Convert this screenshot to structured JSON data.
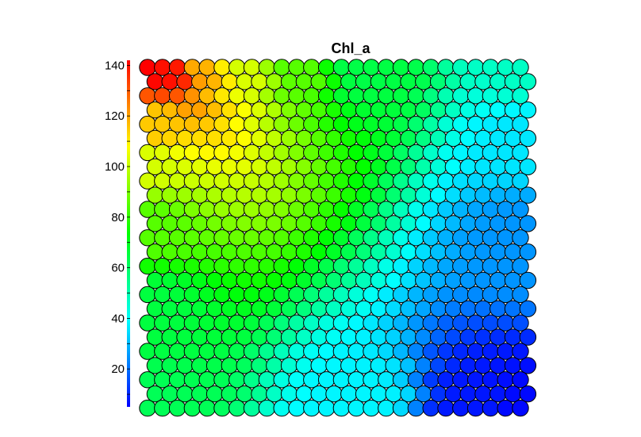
{
  "chart_data": {
    "type": "heatmap",
    "subtype": "som-hexagonal-component-plane",
    "title": "Chl_a",
    "grid": {
      "columns": 26,
      "rows": 25
    },
    "colormap": [
      "#0000ff",
      "#00ffff",
      "#00ff00",
      "#ffff00",
      "#ff0000"
    ],
    "colorbar": {
      "placement": "left",
      "range": [
        5,
        142
      ],
      "ticks": [
        20,
        40,
        60,
        80,
        100,
        120,
        140
      ],
      "tick_labels": [
        "20",
        "40",
        "60",
        "80",
        "100",
        "120",
        "140"
      ]
    },
    "anchors": [
      {
        "col": 0,
        "row": 0,
        "value": 142
      },
      {
        "col": 1,
        "row": 0,
        "value": 140
      },
      {
        "col": 4,
        "row": 0,
        "value": 118
      },
      {
        "col": 0,
        "row": 4,
        "value": 115
      },
      {
        "col": 6,
        "row": 0,
        "value": 102
      },
      {
        "col": 0,
        "row": 7,
        "value": 102
      },
      {
        "col": 10,
        "row": 0,
        "value": 85
      },
      {
        "col": 0,
        "row": 11,
        "value": 85
      },
      {
        "col": 14,
        "row": 0,
        "value": 64
      },
      {
        "col": 0,
        "row": 17,
        "value": 65
      },
      {
        "col": 25,
        "row": 0,
        "value": 47
      },
      {
        "col": 0,
        "row": 24,
        "value": 62
      },
      {
        "col": 14,
        "row": 24,
        "value": 38
      },
      {
        "col": 25,
        "row": 5,
        "value": 36
      },
      {
        "col": 25,
        "row": 12,
        "value": 25
      },
      {
        "col": 22,
        "row": 24,
        "value": 8
      },
      {
        "col": 25,
        "row": 24,
        "value": 6
      }
    ],
    "xlabel": "",
    "ylabel": ""
  }
}
